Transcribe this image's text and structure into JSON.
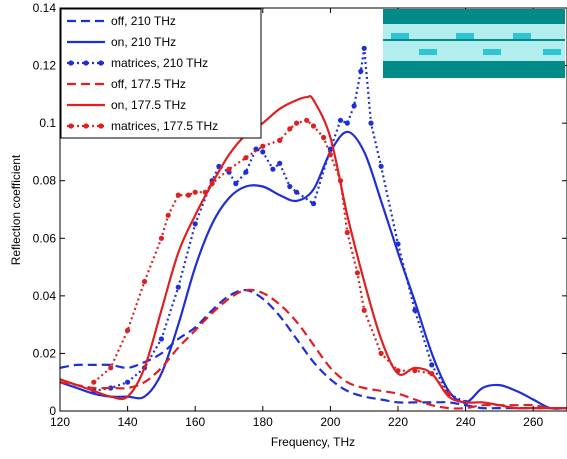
{
  "chart_data": {
    "type": "line",
    "title": "",
    "xlabel": "Frequency, THz",
    "ylabel": "Reflection coefficient",
    "xlim": [
      120,
      270
    ],
    "ylim": [
      0,
      0.14
    ],
    "xticks": [
      120,
      140,
      160,
      180,
      200,
      220,
      240,
      260
    ],
    "yticks": [
      0,
      0.02,
      0.04,
      0.06,
      0.08,
      0.1,
      0.12,
      0.14
    ],
    "xtick_labels": [
      "120",
      "140",
      "160",
      "180",
      "200",
      "220",
      "240",
      "260"
    ],
    "ytick_labels": [
      "0",
      "0.02",
      "0.04",
      "0.06",
      "0.08",
      "0.1",
      "0.12",
      "0.14"
    ],
    "grid": false,
    "legend_position": "top-left",
    "series": [
      {
        "name": "off, 210 THz",
        "color": "#1f2fd6",
        "style": "dashed",
        "markers": false,
        "x": [
          120,
          125,
          130,
          135,
          140,
          145,
          150,
          155,
          160,
          165,
          170,
          175,
          180,
          185,
          190,
          195,
          200,
          205,
          210,
          215,
          220,
          225,
          230,
          235,
          240,
          245,
          250,
          255,
          260,
          265,
          270
        ],
        "y": [
          0.015,
          0.016,
          0.016,
          0.016,
          0.015,
          0.017,
          0.02,
          0.025,
          0.029,
          0.035,
          0.04,
          0.042,
          0.039,
          0.033,
          0.025,
          0.017,
          0.011,
          0.007,
          0.005,
          0.004,
          0.003,
          0.003,
          0.003,
          0.003,
          0.002,
          0.001,
          0.001,
          0.001,
          0.001,
          0.001,
          0.001
        ]
      },
      {
        "name": "on, 210 THz",
        "color": "#1f2fd6",
        "style": "solid",
        "markers": false,
        "x": [
          120,
          125,
          130,
          135,
          140,
          145,
          150,
          155,
          160,
          165,
          170,
          175,
          180,
          185,
          190,
          195,
          200,
          205,
          210,
          215,
          220,
          225,
          230,
          235,
          240,
          245,
          250,
          255,
          260,
          265,
          270
        ],
        "y": [
          0.01,
          0.008,
          0.006,
          0.005,
          0.005,
          0.005,
          0.013,
          0.03,
          0.05,
          0.065,
          0.074,
          0.078,
          0.078,
          0.075,
          0.073,
          0.077,
          0.09,
          0.097,
          0.09,
          0.073,
          0.055,
          0.038,
          0.02,
          0.007,
          0.003,
          0.008,
          0.009,
          0.007,
          0.004,
          0.001,
          0.001
        ]
      },
      {
        "name": "matrices, 210 THz",
        "color": "#1f2fd6",
        "style": "dotted",
        "markers": true,
        "x": [
          130,
          135,
          140,
          145,
          150,
          155,
          160,
          165,
          167,
          170,
          172,
          175,
          178,
          180,
          183,
          185,
          188,
          190,
          195,
          200,
          203,
          205,
          207,
          209,
          210,
          212,
          215,
          220,
          225,
          230,
          235,
          240
        ],
        "y": [
          0.007,
          0.008,
          0.01,
          0.015,
          0.025,
          0.043,
          0.065,
          0.08,
          0.085,
          0.083,
          0.079,
          0.083,
          0.091,
          0.09,
          0.084,
          0.086,
          0.078,
          0.076,
          0.072,
          0.091,
          0.101,
          0.1,
          0.106,
          0.118,
          0.126,
          0.1,
          0.085,
          0.058,
          0.035,
          0.016,
          0.006,
          0.003
        ]
      },
      {
        "name": "off, 177.5 THz",
        "color": "#e02020",
        "style": "dashed",
        "markers": false,
        "x": [
          120,
          125,
          130,
          135,
          140,
          145,
          150,
          155,
          160,
          165,
          170,
          175,
          180,
          185,
          190,
          195,
          200,
          205,
          210,
          215,
          220,
          225,
          230,
          235,
          240,
          245,
          250,
          255,
          260,
          265,
          270
        ],
        "y": [
          0.01,
          0.009,
          0.008,
          0.008,
          0.008,
          0.01,
          0.015,
          0.022,
          0.028,
          0.034,
          0.039,
          0.042,
          0.041,
          0.037,
          0.031,
          0.023,
          0.015,
          0.01,
          0.008,
          0.007,
          0.006,
          0.004,
          0.002,
          0.001,
          0.001,
          0.002,
          0.002,
          0.002,
          0.002,
          0.001,
          0.001
        ]
      },
      {
        "name": "on, 177.5 THz",
        "color": "#e02020",
        "style": "solid",
        "markers": false,
        "x": [
          120,
          125,
          130,
          135,
          140,
          145,
          150,
          155,
          160,
          165,
          170,
          175,
          180,
          185,
          190,
          193,
          195,
          200,
          205,
          210,
          215,
          220,
          225,
          230,
          235,
          240,
          245,
          250,
          255,
          260,
          265,
          270
        ],
        "y": [
          0.011,
          0.009,
          0.007,
          0.005,
          0.005,
          0.015,
          0.035,
          0.055,
          0.068,
          0.079,
          0.089,
          0.096,
          0.1,
          0.105,
          0.108,
          0.109,
          0.108,
          0.095,
          0.068,
          0.045,
          0.025,
          0.013,
          0.015,
          0.013,
          0.005,
          0.003,
          0.003,
          0.002,
          0.001,
          0.001,
          0.001,
          0.001
        ]
      },
      {
        "name": "matrices, 177.5 THz",
        "color": "#e02020",
        "style": "dotted",
        "markers": true,
        "x": [
          130,
          135,
          140,
          145,
          150,
          152,
          155,
          158,
          160,
          163,
          165,
          170,
          175,
          180,
          185,
          188,
          190,
          193,
          195,
          198,
          200,
          203,
          205,
          208,
          210,
          215,
          220,
          225,
          230,
          235
        ],
        "y": [
          0.01,
          0.015,
          0.028,
          0.045,
          0.06,
          0.068,
          0.075,
          0.075,
          0.076,
          0.076,
          0.079,
          0.084,
          0.088,
          0.092,
          0.094,
          0.098,
          0.1,
          0.101,
          0.099,
          0.095,
          0.089,
          0.08,
          0.062,
          0.048,
          0.035,
          0.02,
          0.014,
          0.014,
          0.013,
          0.006
        ]
      }
    ]
  },
  "inset": {
    "dark_color": "#008b88",
    "light_color": "#b2eeee",
    "bar_color": "#2fc4d1"
  }
}
